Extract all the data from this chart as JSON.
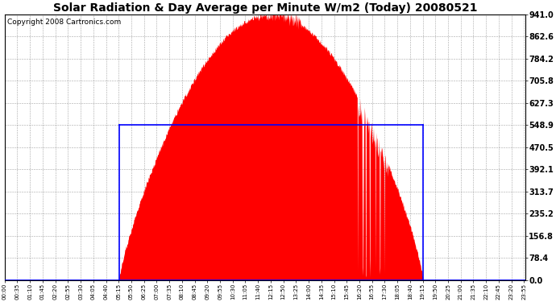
{
  "title": "Solar Radiation & Day Average per Minute W/m2 (Today) 20080521",
  "copyright": "Copyright 2008 Cartronics.com",
  "bg_color": "#ffffff",
  "plot_bg_color": "#ffffff",
  "y_max": 941.0,
  "y_min": 0.0,
  "y_ticks": [
    0.0,
    78.4,
    156.8,
    235.2,
    313.7,
    392.1,
    470.5,
    548.9,
    627.3,
    705.8,
    784.2,
    862.6,
    941.0
  ],
  "solar_color": "#ff0000",
  "avg_color": "#0000ff",
  "grid_color": "#808080",
  "axis_color": "#000000",
  "sunrise_minute": 316,
  "sunset_minute": 1156,
  "avg_value": 548.9,
  "peak_minute": 746,
  "total_minutes": 1440,
  "tick_interval_minutes": 35,
  "title_fontsize": 10,
  "copyright_fontsize": 6.5,
  "ytick_fontsize": 7,
  "xtick_fontsize": 5
}
